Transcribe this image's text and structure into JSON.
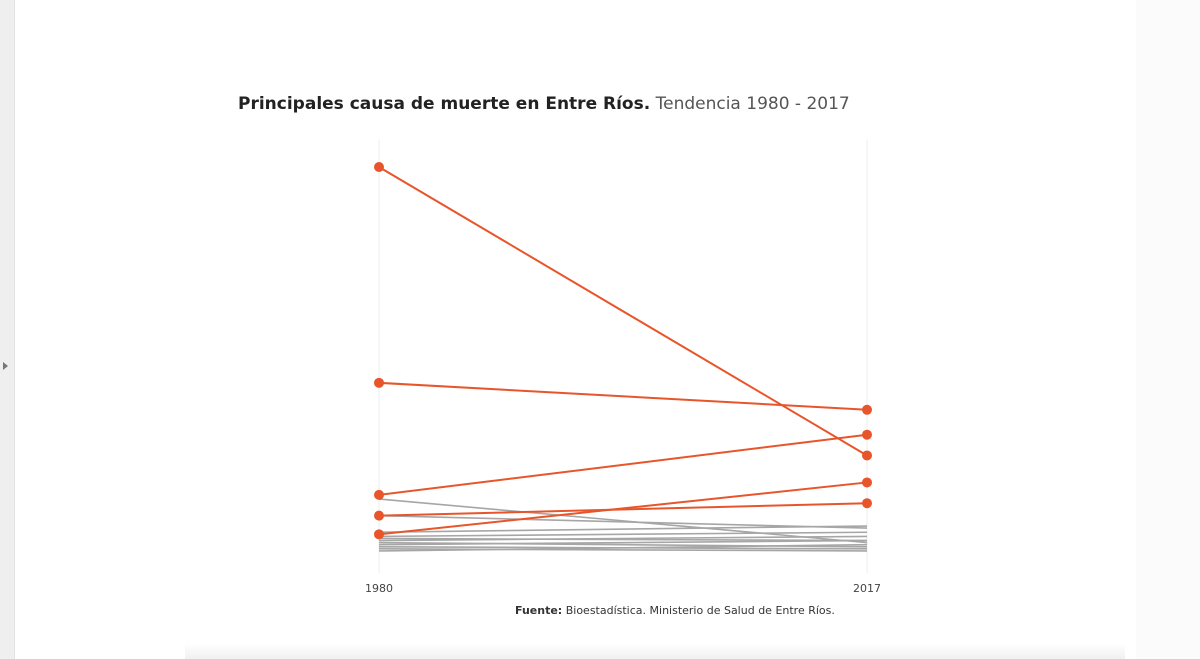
{
  "page": {
    "title_bold": "Principales causa de muerte en Entre Ríos.",
    "title_light": "Tendencia 1980 - 2017",
    "source_label": "Fuente:",
    "source_text": "Bioestadística. Ministerio de Salud de Entre Ríos."
  },
  "chart_data": {
    "type": "line",
    "subtype": "slope",
    "x": [
      "1980",
      "2017"
    ],
    "ylim": [
      0,
      100
    ],
    "grid": false,
    "colors": {
      "highlight": "#e8552a",
      "other": "#a6a6a6"
    },
    "series": [
      {
        "name": "highlight-1",
        "highlight": true,
        "values": [
          93,
          23.5
        ]
      },
      {
        "name": "highlight-2",
        "highlight": true,
        "values": [
          41,
          34.5
        ]
      },
      {
        "name": "highlight-3",
        "highlight": true,
        "values": [
          14,
          28.5
        ]
      },
      {
        "name": "highlight-4",
        "highlight": true,
        "values": [
          4.5,
          17
        ]
      },
      {
        "name": "highlight-5",
        "highlight": true,
        "values": [
          9,
          12
        ]
      },
      {
        "name": "other-1",
        "highlight": false,
        "values": [
          13,
          2.5
        ]
      },
      {
        "name": "other-2",
        "highlight": false,
        "values": [
          9,
          6
        ]
      },
      {
        "name": "other-3",
        "highlight": false,
        "values": [
          5,
          6.5
        ]
      },
      {
        "name": "other-4",
        "highlight": false,
        "values": [
          4,
          5
        ]
      },
      {
        "name": "other-5",
        "highlight": false,
        "values": [
          3.5,
          3
        ]
      },
      {
        "name": "other-6",
        "highlight": false,
        "values": [
          3,
          4
        ]
      },
      {
        "name": "other-7",
        "highlight": false,
        "values": [
          2.5,
          1.5
        ]
      },
      {
        "name": "other-8",
        "highlight": false,
        "values": [
          2,
          3
        ]
      },
      {
        "name": "other-9",
        "highlight": false,
        "values": [
          1.5,
          1
        ]
      },
      {
        "name": "other-10",
        "highlight": false,
        "values": [
          1,
          0.5
        ]
      },
      {
        "name": "other-11",
        "highlight": false,
        "values": [
          0.5,
          2
        ]
      }
    ]
  }
}
